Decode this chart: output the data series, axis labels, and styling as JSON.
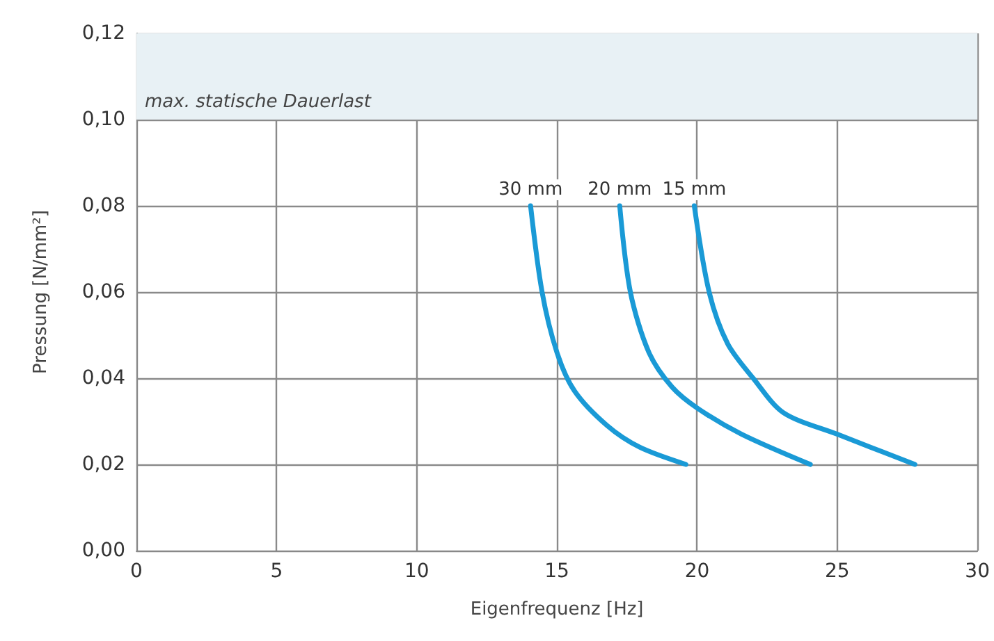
{
  "chart_data": {
    "type": "line",
    "xlabel": "Eigenfrequenz [Hz]",
    "ylabel": "Pressung [N/mm²]",
    "xlim": [
      0,
      30
    ],
    "xticks": [
      0,
      5,
      10,
      15,
      20,
      25,
      30
    ],
    "ylim": [
      0,
      0.12
    ],
    "yticks": [
      {
        "value": 0,
        "label": "0,00"
      },
      {
        "value": 0.02,
        "label": "0,02"
      },
      {
        "value": 0.04,
        "label": "0,04"
      },
      {
        "value": 0.06,
        "label": "0,06"
      },
      {
        "value": 0.08,
        "label": "0,08"
      },
      {
        "value": 0.1,
        "label": "0,10"
      },
      {
        "value": 0.12,
        "label": "0,12"
      }
    ],
    "grid": true,
    "legend": false,
    "marker": "none",
    "line_style": "solid",
    "bands": [
      {
        "axis": "y",
        "from": 0.1,
        "to": 0.12,
        "label": "max. statische Dauerlast",
        "color": "#e8f1f5"
      }
    ],
    "series": [
      {
        "name": "30 mm",
        "color": "#1a9ad6",
        "x": [
          14.06,
          14.47,
          15.0,
          15.63,
          16.79,
          17.95,
          19.6
        ],
        "values": [
          0.08,
          0.06,
          0.046,
          0.037,
          0.029,
          0.024,
          0.02
        ]
      },
      {
        "name": "20 mm",
        "color": "#1a9ad6",
        "x": [
          17.24,
          17.62,
          18.28,
          19.1,
          20.02,
          21.59,
          24.04
        ],
        "values": [
          0.08,
          0.06,
          0.046,
          0.038,
          0.033,
          0.027,
          0.02
        ]
      },
      {
        "name": "15 mm",
        "color": "#1a9ad6",
        "x": [
          19.9,
          20.43,
          21.09,
          22.0,
          23.08,
          25.0,
          27.77
        ],
        "values": [
          0.08,
          0.06,
          0.048,
          0.04,
          0.032,
          0.027,
          0.02
        ]
      }
    ]
  }
}
